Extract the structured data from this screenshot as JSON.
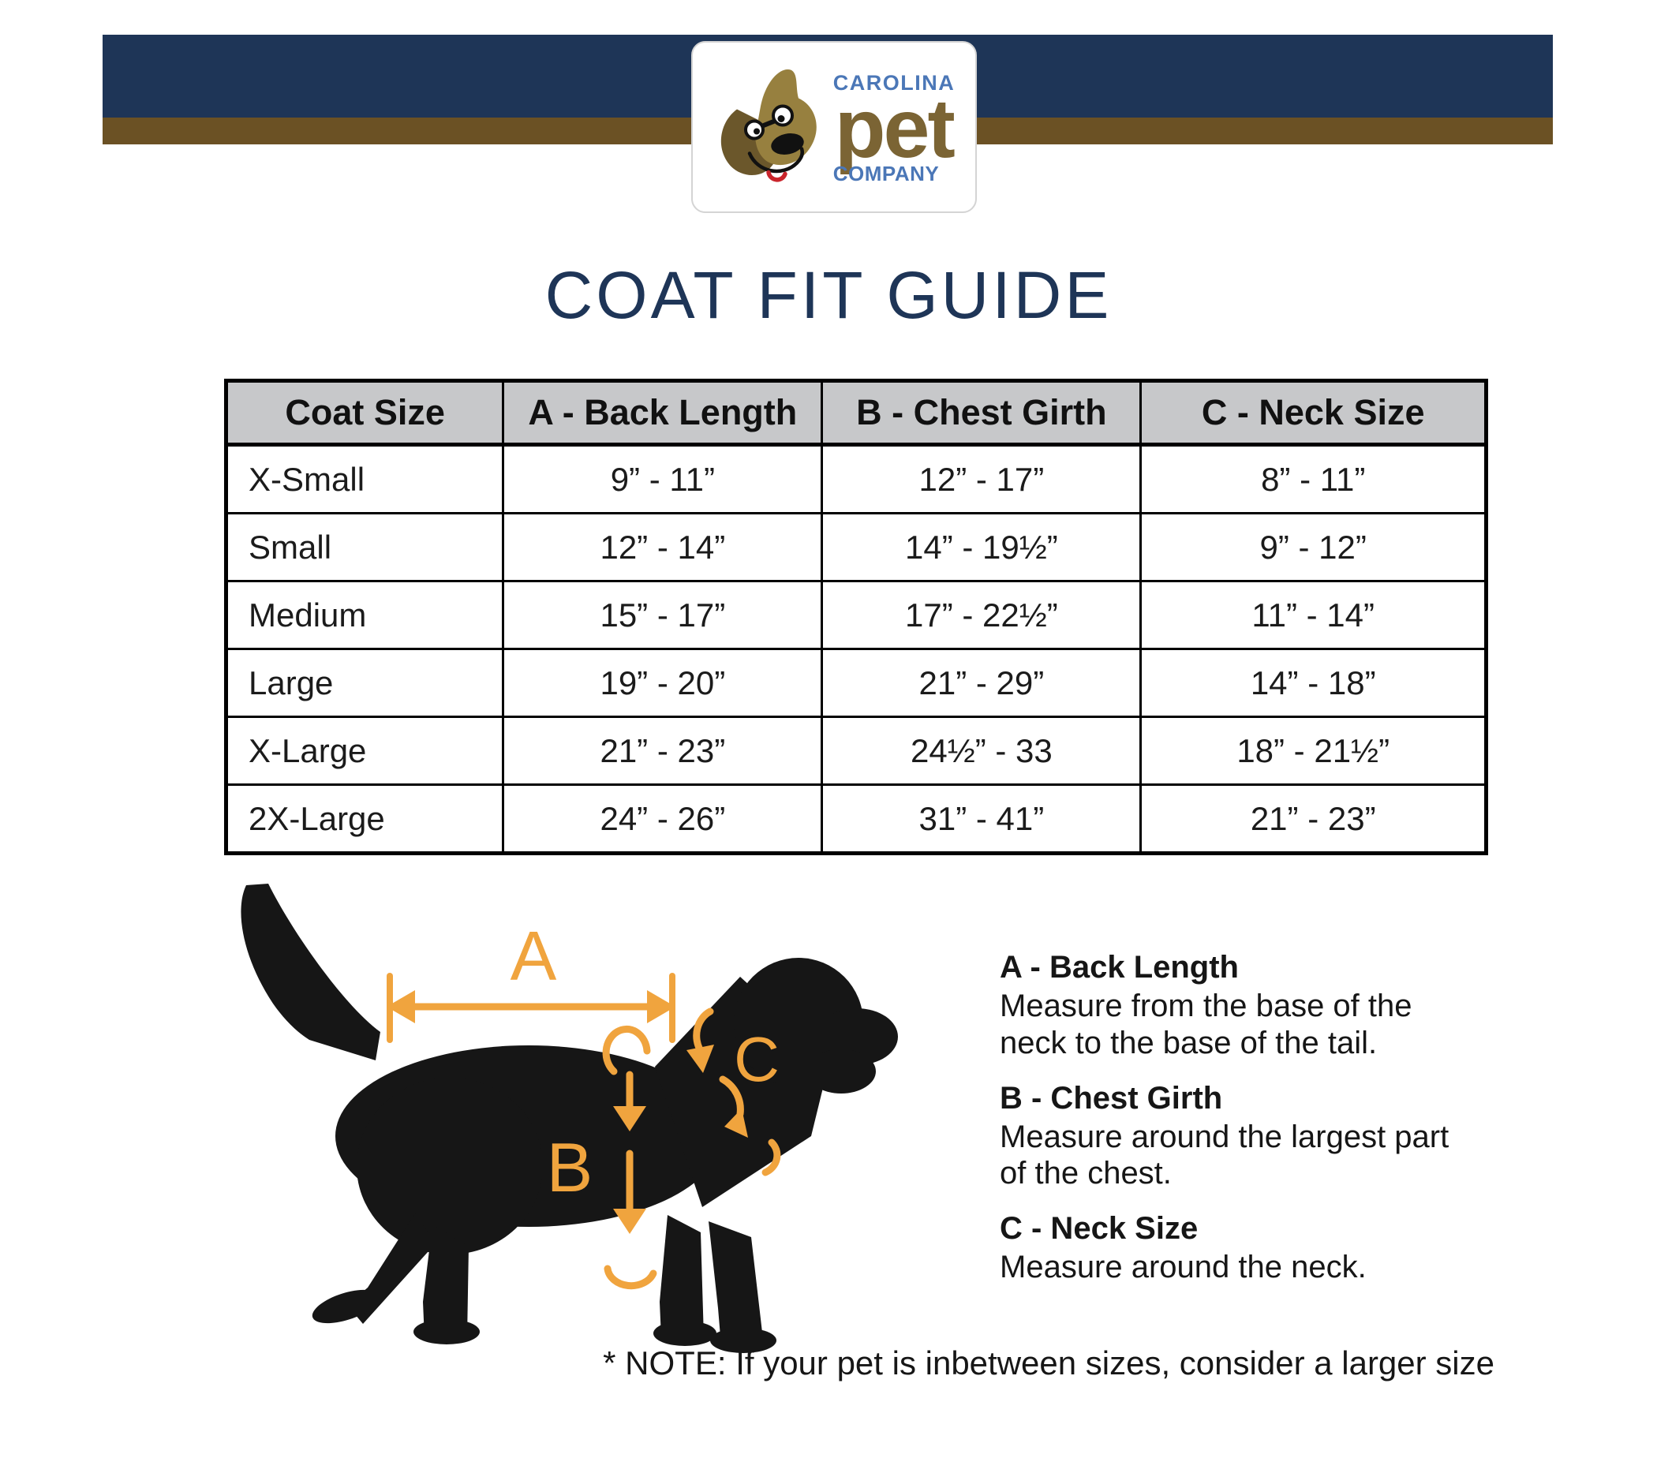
{
  "brand": {
    "line_top": "CAROLINA",
    "line_mid": "pet",
    "line_bottom": "COMPANY"
  },
  "title": "COAT FIT GUIDE",
  "table": {
    "headers": [
      "Coat Size",
      "A - Back Length",
      "B - Chest Girth",
      "C - Neck Size"
    ],
    "rows": [
      [
        "X-Small",
        "9” - 11”",
        "12” - 17”",
        "8” - 11”"
      ],
      [
        "Small",
        "12” - 14”",
        "14” - 19½”",
        "9” - 12”"
      ],
      [
        "Medium",
        "15” - 17”",
        "17” - 22½”",
        "11” - 14”"
      ],
      [
        "Large",
        "19” - 20”",
        "21” - 29”",
        "14” - 18”"
      ],
      [
        "X-Large",
        "21” - 23”",
        "24½” - 33",
        "18” - 21½”"
      ],
      [
        "2X-Large",
        "24” - 26”",
        "31” - 41”",
        "21” - 23”"
      ]
    ]
  },
  "diagram": {
    "labels": {
      "a": "A",
      "b": "B",
      "c": "C"
    }
  },
  "legend": [
    {
      "heading": "A - Back Length",
      "text": "Measure from the base of the neck to the base of the tail."
    },
    {
      "heading": "B - Chest Girth",
      "text": "Measure around the largest part of the chest."
    },
    {
      "heading": "C - Neck Size",
      "text": "Measure around the neck."
    }
  ],
  "note": "* NOTE: If your pet is inbetween sizes, consider a larger size",
  "colors": {
    "navy": "#1e3557",
    "brown": "#6b5124",
    "table_header_gray": "#c7c8ca",
    "accent_orange": "#f0a43e",
    "logo_blue": "#4b77b7",
    "logo_olive": "#7b6434",
    "silhouette_black": "#161616"
  }
}
